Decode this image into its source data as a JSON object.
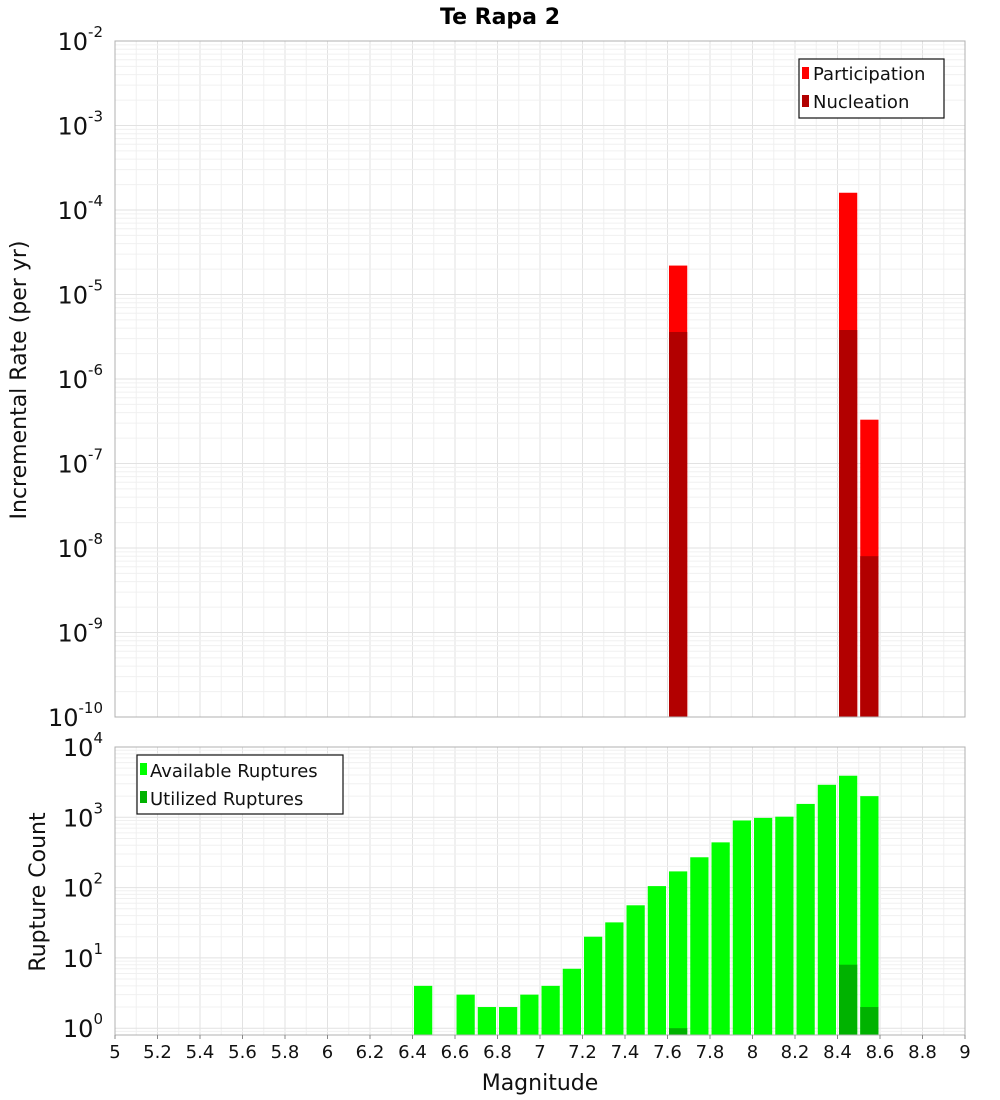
{
  "title": "Te Rapa 2",
  "chart_data": [
    {
      "type": "bar",
      "panel": "top",
      "ylabel": "Incremental Rate (per yr)",
      "yscale": "log",
      "ylim_exponents": [
        -10,
        -2
      ],
      "y_tick_exponents": [
        -10,
        -9,
        -8,
        -7,
        -6,
        -5,
        -4,
        -3,
        -2
      ],
      "bin_width": 0.1,
      "legend": {
        "position": "top-right",
        "entries": [
          "Participation",
          "Nucleation"
        ]
      },
      "series": [
        {
          "name": "Participation",
          "color": "#ff0000",
          "points": [
            {
              "x": 7.65,
              "y": 2.2e-05
            },
            {
              "x": 8.45,
              "y": 0.00016
            },
            {
              "x": 8.55,
              "y": 3.3e-07
            }
          ]
        },
        {
          "name": "Nucleation",
          "color": "#b20000",
          "points": [
            {
              "x": 7.65,
              "y": 3.6e-06
            },
            {
              "x": 8.45,
              "y": 3.8e-06
            },
            {
              "x": 8.55,
              "y": 8e-09
            }
          ]
        }
      ]
    },
    {
      "type": "bar",
      "panel": "bottom",
      "ylabel": "Rupture Count",
      "xlabel": "Magnitude",
      "yscale": "log",
      "ylim": [
        0.8,
        10000
      ],
      "y_tick_exponents": [
        0,
        1,
        2,
        3,
        4
      ],
      "xlim": [
        5,
        9
      ],
      "x_ticks": [
        "5",
        "5.2",
        "5.4",
        "5.6",
        "5.8",
        "6",
        "6.2",
        "6.4",
        "6.6",
        "6.8",
        "7",
        "7.2",
        "7.4",
        "7.6",
        "7.8",
        "8",
        "8.2",
        "8.4",
        "8.6",
        "8.8",
        "9"
      ],
      "bin_width": 0.1,
      "legend": {
        "position": "top-left",
        "entries": [
          "Available Ruptures",
          "Utilized Ruptures"
        ]
      },
      "series": [
        {
          "name": "Available Ruptures",
          "color": "#00ff00",
          "points": [
            {
              "x": 6.45,
              "y": 4
            },
            {
              "x": 6.65,
              "y": 3
            },
            {
              "x": 6.75,
              "y": 2
            },
            {
              "x": 6.85,
              "y": 2
            },
            {
              "x": 6.95,
              "y": 3
            },
            {
              "x": 7.05,
              "y": 4
            },
            {
              "x": 7.15,
              "y": 7
            },
            {
              "x": 7.25,
              "y": 20
            },
            {
              "x": 7.35,
              "y": 32
            },
            {
              "x": 7.45,
              "y": 56
            },
            {
              "x": 7.55,
              "y": 105
            },
            {
              "x": 7.65,
              "y": 170
            },
            {
              "x": 7.75,
              "y": 270
            },
            {
              "x": 7.85,
              "y": 440
            },
            {
              "x": 7.95,
              "y": 900
            },
            {
              "x": 8.05,
              "y": 980
            },
            {
              "x": 8.15,
              "y": 1020
            },
            {
              "x": 8.25,
              "y": 1550
            },
            {
              "x": 8.35,
              "y": 2900
            },
            {
              "x": 8.45,
              "y": 3900
            },
            {
              "x": 8.55,
              "y": 2000
            }
          ]
        },
        {
          "name": "Utilized Ruptures",
          "color": "#00b200",
          "points": [
            {
              "x": 7.65,
              "y": 1
            },
            {
              "x": 8.45,
              "y": 8
            },
            {
              "x": 8.55,
              "y": 2
            }
          ]
        }
      ]
    }
  ]
}
